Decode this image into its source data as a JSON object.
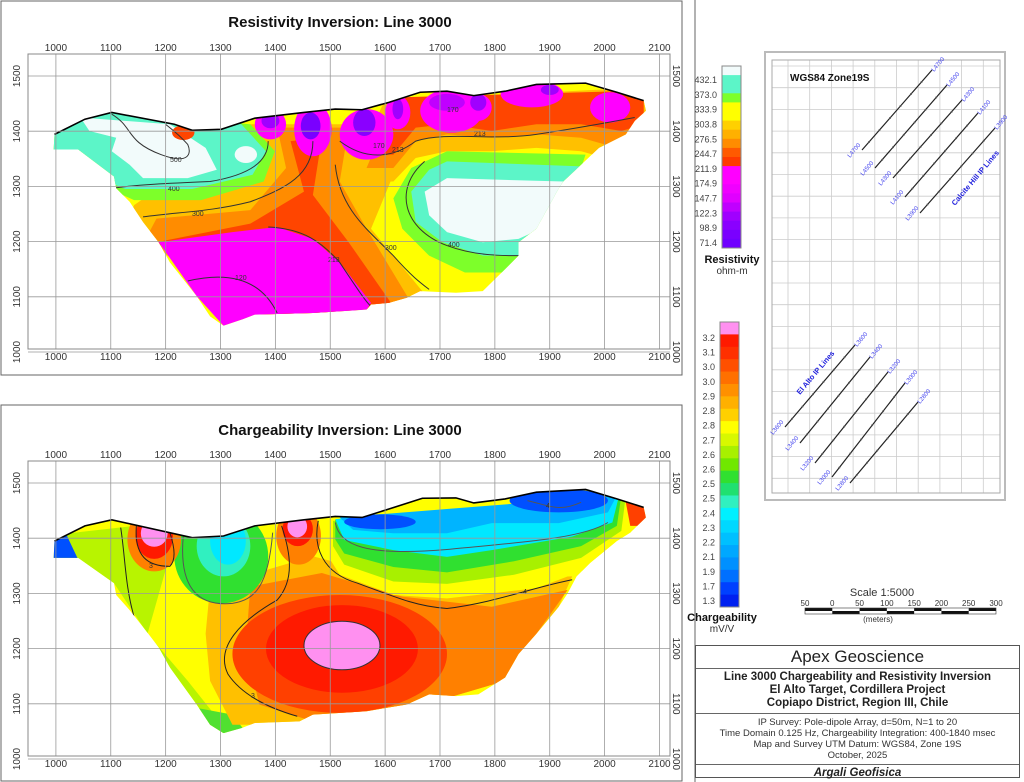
{
  "resistivity": {
    "title": "Resistivity Inversion: Line 3000",
    "x_ticks": [
      1000,
      1100,
      1200,
      1300,
      1400,
      1500,
      1600,
      1700,
      1800,
      1900,
      2000,
      2100
    ],
    "y_ticks": [
      1000,
      1100,
      1200,
      1300,
      1400,
      1500
    ],
    "contour_labels": [
      "500",
      "400",
      "300",
      "170",
      "213",
      "170",
      "213",
      "120",
      "213",
      "300",
      "400"
    ],
    "colorbar": {
      "title": "Resistivity",
      "unit": "ohm-m",
      "labels": [
        "432.1",
        "373.0",
        "333.9",
        "303.8",
        "276.5",
        "244.7",
        "211.9",
        "174.9",
        "147.7",
        "122.3",
        "98.9",
        "71.4"
      ],
      "colors": [
        "#f2fbfb",
        "#5cf5c8",
        "#5cf5c8",
        "#7dff2a",
        "#ffff00",
        "#ffff00",
        "#ffd000",
        "#ffb000",
        "#ff8c00",
        "#ff5a00",
        "#ff3a00",
        "#ff00ff",
        "#ff00ff",
        "#f000ff",
        "#e000ff",
        "#c000ff",
        "#a000ff",
        "#8a00ff",
        "#7a00ff",
        "#7000ff"
      ]
    }
  },
  "chargeability": {
    "title": "Chargeability Inversion: Line 3000",
    "x_ticks": [
      1000,
      1100,
      1200,
      1300,
      1400,
      1500,
      1600,
      1700,
      1800,
      1900,
      2000,
      2100
    ],
    "y_ticks": [
      1000,
      1100,
      1200,
      1300,
      1400,
      1500
    ],
    "contour_labels": [
      "3",
      "3",
      "4",
      "4"
    ],
    "colorbar": {
      "title": "Chargeability",
      "unit": "mV/V",
      "labels": [
        "3.2",
        "3.1",
        "3.0",
        "3.0",
        "2.9",
        "2.8",
        "2.8",
        "2.7",
        "2.6",
        "2.6",
        "2.5",
        "2.5",
        "2.4",
        "2.3",
        "2.2",
        "2.1",
        "1.9",
        "1.7",
        "1.3"
      ],
      "colors": [
        "#ff90f0",
        "#ff1a00",
        "#ff3000",
        "#ff5000",
        "#ff7000",
        "#ff9000",
        "#ffb000",
        "#ffd000",
        "#ffff00",
        "#d8f800",
        "#a8f000",
        "#70e800",
        "#30e030",
        "#20e070",
        "#30f0c0",
        "#00f0ff",
        "#00d8ff",
        "#00c0ff",
        "#00a8ff",
        "#0090ff",
        "#0070ff",
        "#0040ff",
        "#0020f0"
      ]
    }
  },
  "map": {
    "title": "WGS84 Zone19S",
    "calcite_group": "Calcite Hill IP Lines",
    "calcite_lines": [
      "L4700",
      "L4500",
      "L4300",
      "L4100",
      "L3900"
    ],
    "elalto_group": "El Alto IP Lines",
    "elalto_lines": [
      "L3600",
      "L3400",
      "L3200",
      "L3000",
      "L2800"
    ]
  },
  "scale": {
    "title": "Scale 1:5000",
    "labels": [
      "50",
      "0",
      "50",
      "100",
      "150",
      "200",
      "250",
      "300"
    ],
    "unit": "(meters)"
  },
  "title_block": {
    "company": "Apex Geoscience",
    "title_lines": [
      "Line 3000 Chargeability and Resistivity Inversion",
      "El Alto Target, Cordillera Project",
      "Copiapo District, Region III, Chile"
    ],
    "details": [
      "IP Survey: Pole-dipole Array, d=50m, N=1 to 20",
      "Time Domain 0.125 Hz, Chargeability Integration: 400-1840 msec",
      "Map and Survey UTM Datum: WGS84, Zone 19S",
      "October, 2025"
    ],
    "contractor": "Argali Geofisica"
  }
}
